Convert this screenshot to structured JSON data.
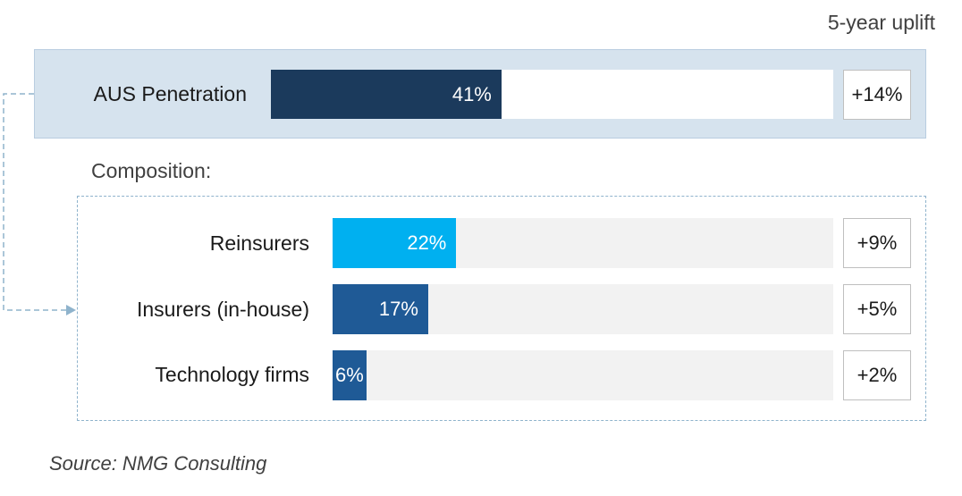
{
  "header": {
    "uplift_heading": "5-year uplift"
  },
  "main_bar": {
    "label": "AUS Penetration",
    "value": 41,
    "value_label": "41%",
    "uplift": "+14%",
    "color": "#1b3a5c"
  },
  "composition": {
    "title": "Composition:",
    "items": [
      {
        "label": "Reinsurers",
        "value": 22,
        "value_label": "22%",
        "uplift": "+9%",
        "color": "#00b0f0"
      },
      {
        "label": "Insurers (in-house)",
        "value": 17,
        "value_label": "17%",
        "uplift": "+5%",
        "color": "#1f5a96"
      },
      {
        "label": "Technology firms",
        "value": 6,
        "value_label": "6%",
        "uplift": "+2%",
        "color": "#1f5a96"
      }
    ]
  },
  "source": "Source: NMG Consulting",
  "chart_data": {
    "type": "bar",
    "orientation": "horizontal",
    "xlim": [
      0,
      100
    ],
    "categories": [
      "AUS Penetration",
      "Reinsurers",
      "Insurers (in-house)",
      "Technology firms"
    ],
    "values": [
      41,
      22,
      17,
      6
    ],
    "data_labels": [
      "41%",
      "22%",
      "17%",
      "6%"
    ],
    "uplift_column_title": "5-year uplift",
    "uplift": [
      "+14%",
      "+9%",
      "+5%",
      "+2%"
    ],
    "group_label": "Composition:"
  }
}
